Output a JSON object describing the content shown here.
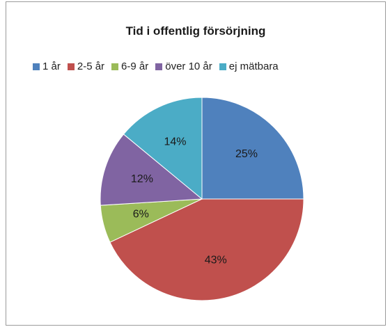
{
  "chart_data": {
    "type": "pie",
    "title": "Tid i offentlig försörjning",
    "legend_placement": "top",
    "slices": [
      {
        "label": "1 år",
        "value": 25,
        "display": "25%",
        "color": "#4f81bd"
      },
      {
        "label": "2-5 år",
        "value": 43,
        "display": "43%",
        "color": "#c0504d"
      },
      {
        "label": "6-9 år",
        "value": 6,
        "display": "6%",
        "color": "#9bbb59"
      },
      {
        "label": "över 10 år",
        "value": 12,
        "display": "12%",
        "color": "#8064a2"
      },
      {
        "label": "ej mätbara",
        "value": 14,
        "display": "14%",
        "color": "#4bacc6"
      }
    ]
  }
}
